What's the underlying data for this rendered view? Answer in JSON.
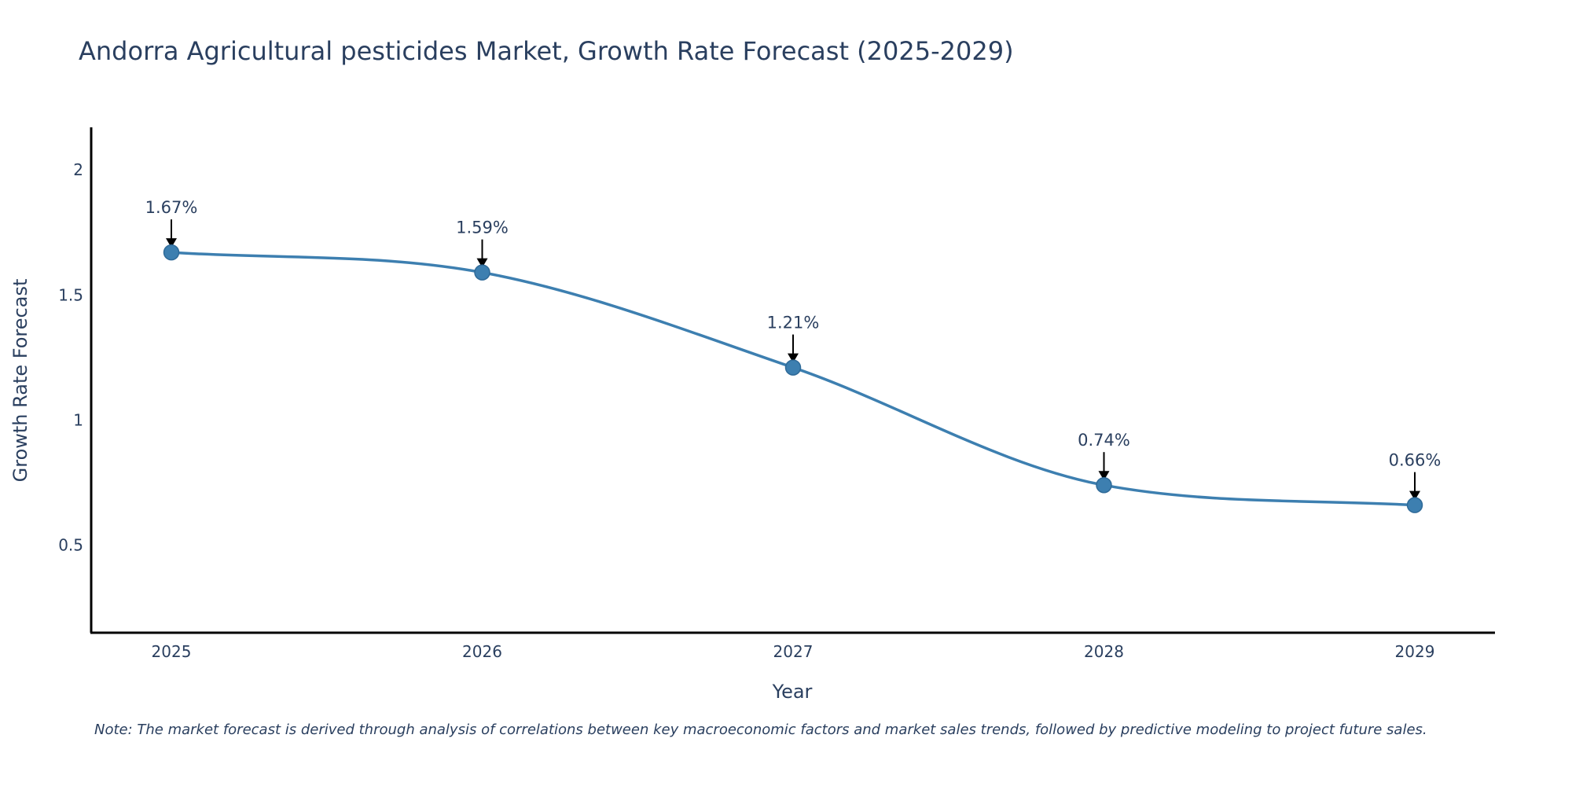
{
  "title": "Andorra Agricultural pesticides Market, Growth Rate Forecast (2025-2029)",
  "note": "Note: The market forecast is derived through analysis of correlations between key macroeconomic factors and market sales trends, followed by predictive modeling to project future sales.",
  "chart_data": {
    "type": "line",
    "title": "Andorra Agricultural pesticides Market, Growth Rate Forecast (2025-2029)",
    "xlabel": "Year",
    "ylabel": "Growth Rate Forecast",
    "categories": [
      "2025",
      "2026",
      "2027",
      "2028",
      "2029"
    ],
    "series": [
      {
        "name": "Growth Rate Forecast",
        "values": [
          1.67,
          1.59,
          1.21,
          0.74,
          0.66
        ]
      }
    ],
    "labels": [
      "1.67%",
      "1.59%",
      "1.21%",
      "0.74%",
      "0.66%"
    ],
    "ylim": [
      0.15,
      2.17
    ],
    "yticks": [
      0.5,
      1,
      1.5,
      2
    ],
    "ytick_labels": [
      "0.5",
      "1",
      "1.5",
      "2"
    ],
    "line_color": "#3d7fb0",
    "grid": false
  }
}
